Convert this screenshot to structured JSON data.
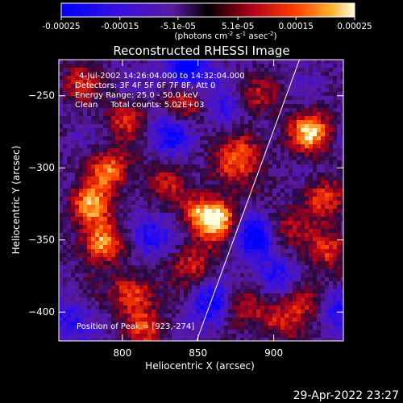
{
  "chart_data": {
    "type": "heatmap",
    "title": "Reconstructed RHESSI Image",
    "xlabel": "Heliocentric X (arcsec)",
    "ylabel": "Heliocentric Y (arcsec)",
    "xlim": [
      758,
      946
    ],
    "ylim": [
      -420,
      -225
    ],
    "x_ticks": [
      800,
      850,
      900
    ],
    "y_ticks": [
      -400,
      -350,
      -300,
      -250
    ],
    "colorbar": {
      "range": [
        -0.00025,
        0.00025
      ],
      "tick_values": [
        -0.00025,
        -0.00015,
        -5.1e-05,
        5.1e-05,
        0.00015,
        0.00025
      ],
      "tick_labels": [
        "-0.00025",
        "-0.00015",
        "-5.1e-05",
        "5.1e-05",
        "0.00015",
        "0.00025"
      ],
      "unit_parts": [
        "(photons cm",
        "-2",
        " s",
        "-1",
        " asec",
        "-2",
        ")"
      ]
    },
    "annotations": [
      "4-Jul-2002 14:26:04.000 to 14:32:04.000",
      "Detectors: 3F 4F 5F 6F 7F 8F, Att 0",
      "Energy Range: 25.0 - 50.0 keV",
      "Clean     Total counts: 5.02E+03"
    ],
    "peak_label": "Position of Peak = [923,-274]",
    "peak": [
      923,
      -274
    ],
    "limb_line": [
      [
        849,
        -420
      ],
      [
        917,
        -225
      ]
    ],
    "hotspots": [
      {
        "x": 785,
        "y": -350,
        "v": 1.0
      },
      {
        "x": 778,
        "y": -325,
        "v": 0.9
      },
      {
        "x": 790,
        "y": -300,
        "v": 0.85
      },
      {
        "x": 805,
        "y": -385,
        "v": 0.8
      },
      {
        "x": 815,
        "y": -410,
        "v": 0.6
      },
      {
        "x": 800,
        "y": -265,
        "v": 0.55
      },
      {
        "x": 840,
        "y": -255,
        "v": 0.6
      },
      {
        "x": 850,
        "y": -330,
        "v": 0.65
      },
      {
        "x": 862,
        "y": -335,
        "v": 0.95
      },
      {
        "x": 870,
        "y": -300,
        "v": 0.6
      },
      {
        "x": 880,
        "y": -285,
        "v": 0.55
      },
      {
        "x": 923,
        "y": -274,
        "v": 1.0
      },
      {
        "x": 930,
        "y": -320,
        "v": 0.7
      },
      {
        "x": 935,
        "y": -355,
        "v": 0.65
      },
      {
        "x": 920,
        "y": -390,
        "v": 0.7
      },
      {
        "x": 900,
        "y": -405,
        "v": 0.55
      },
      {
        "x": 875,
        "y": -395,
        "v": 0.6
      },
      {
        "x": 845,
        "y": -365,
        "v": 0.55
      },
      {
        "x": 770,
        "y": -240,
        "v": 0.5
      },
      {
        "x": 905,
        "y": -340,
        "v": 0.45
      },
      {
        "x": 825,
        "y": -310,
        "v": 0.45
      },
      {
        "x": 890,
        "y": -250,
        "v": 0.4
      }
    ],
    "coldspots": [
      {
        "x": 840,
        "y": -230,
        "v": -0.9
      },
      {
        "x": 885,
        "y": -345,
        "v": -0.8
      },
      {
        "x": 860,
        "y": -395,
        "v": -0.75
      },
      {
        "x": 830,
        "y": -275,
        "v": -0.55
      },
      {
        "x": 815,
        "y": -345,
        "v": -0.55
      },
      {
        "x": 900,
        "y": -375,
        "v": -0.55
      },
      {
        "x": 940,
        "y": -395,
        "v": -0.6
      },
      {
        "x": 760,
        "y": -405,
        "v": -0.45
      },
      {
        "x": 865,
        "y": -260,
        "v": -0.4
      }
    ]
  },
  "footer": {
    "timestamp": "29-Apr-2022 23:27"
  }
}
